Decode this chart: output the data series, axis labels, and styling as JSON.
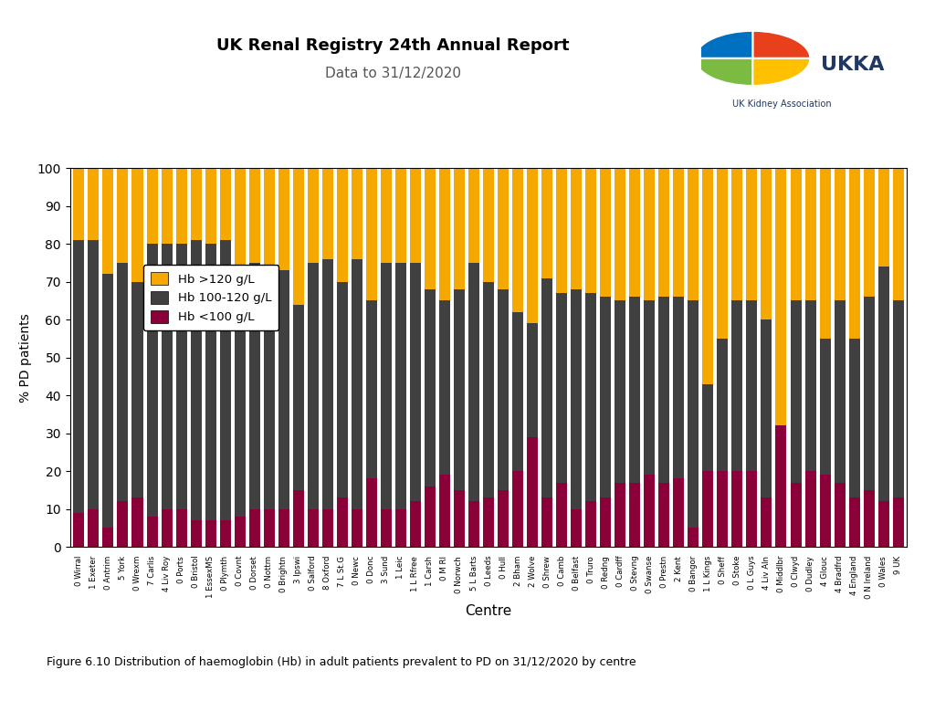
{
  "title": "UK Renal Registry 24th Annual Report",
  "subtitle": "Data to 31/12/2020",
  "ylabel": "% PD patients",
  "xlabel": "Centre",
  "caption": "Figure 6.10 Distribution of haemoglobin (Hb) in adult patients prevalent to PD on 31/12/2020 by centre",
  "colors": {
    "hb_gt120": "#F5A800",
    "hb_100_120": "#404040",
    "hb_lt100": "#8B0038"
  },
  "legend_labels": [
    "Hb >120 g/L",
    "Hb 100-120 g/L",
    "Hb <100 g/L"
  ],
  "centres": [
    "0 Wirral",
    "1 Exeter",
    "0 Antrim",
    "5 York",
    "0 Wrexm",
    "7 Carlis",
    "4 Liv Roy",
    "0 Ports",
    "0 Bristol",
    "1 EssexMS",
    "0 Plymth",
    "0 Covnt",
    "0 Dorset",
    "0 Nottm",
    "0 Brightn",
    "3 Ipswi",
    "0 Salford",
    "8 Oxford",
    "7 L St.G",
    "0 Newc",
    "0 Donc",
    "3 Sund",
    "1 Leic",
    "1 L Rfree",
    "1 Carsh",
    "0 M RI",
    "0 Norwch",
    "5 L Barts",
    "0 Leeds",
    "0 Hull",
    "2 Bham",
    "2 Wolve",
    "0 Shrew",
    "0 Camb",
    "0 Belfast",
    "0 Truro",
    "0 Redng",
    "0 Cardff",
    "0 Stevng",
    "0 Swanse",
    "0 Prestn",
    "2 Kent",
    "0 Bangor",
    "1 L Kings",
    "0 Sheff",
    "0 Stoke",
    "0 L Guys",
    "4 Liv Aln",
    "0 Middlbr",
    "0 Clwyd",
    "0 Dudley",
    "4 Glouc",
    "4 Bradfrd",
    "4 England",
    "0 N Ireland",
    "0 Wales",
    "9 UK"
  ],
  "hb_lt100": [
    9,
    10,
    5,
    12,
    13,
    8,
    10,
    10,
    7,
    7,
    7,
    8,
    10,
    10,
    10,
    15,
    10,
    10,
    13,
    10,
    18,
    10,
    10,
    12,
    16,
    19,
    15,
    12,
    13,
    15,
    20,
    29,
    13,
    17,
    10,
    12,
    13,
    17,
    17,
    19,
    17,
    18,
    5,
    20,
    20,
    20,
    20,
    13,
    32,
    17,
    20,
    19,
    17,
    13,
    15,
    12,
    13
  ],
  "hb_100_120": [
    72,
    71,
    67,
    63,
    57,
    72,
    70,
    70,
    74,
    73,
    74,
    66,
    65,
    61,
    63,
    49,
    65,
    66,
    57,
    66,
    47,
    65,
    65,
    63,
    52,
    46,
    53,
    63,
    57,
    53,
    42,
    30,
    58,
    50,
    58,
    55,
    53,
    48,
    49,
    46,
    49,
    48,
    60,
    23,
    35,
    45,
    45,
    47,
    0,
    48,
    45,
    36,
    48,
    42,
    51,
    62,
    52
  ],
  "hb_gt120": [
    19,
    19,
    28,
    25,
    30,
    20,
    20,
    20,
    19,
    20,
    19,
    26,
    25,
    29,
    27,
    36,
    25,
    24,
    30,
    24,
    35,
    25,
    25,
    25,
    32,
    35,
    32,
    25,
    30,
    32,
    38,
    41,
    29,
    33,
    32,
    33,
    34,
    35,
    34,
    35,
    34,
    34,
    35,
    57,
    45,
    35,
    35,
    40,
    68,
    35,
    35,
    45,
    35,
    45,
    34,
    26,
    35
  ]
}
